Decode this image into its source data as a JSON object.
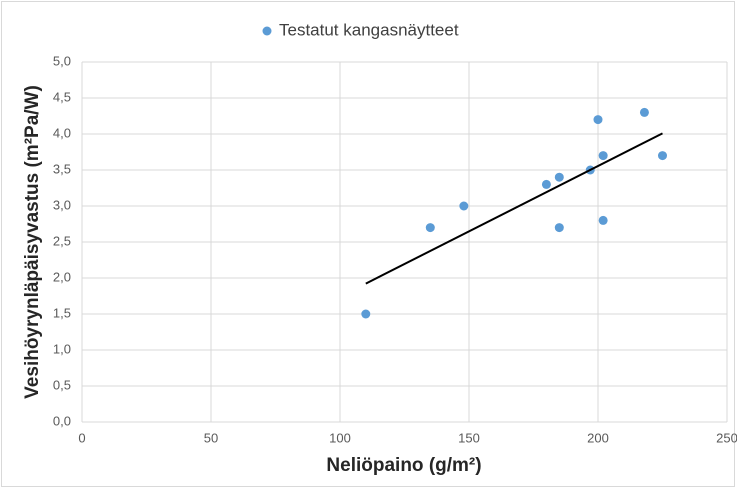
{
  "chart_data": {
    "type": "scatter",
    "legend_position": "top",
    "x_label": "Neliöpaino (g/m²)",
    "y_label": "Vesihöyrynläpäisyvastus (m²Pa/W)",
    "series": [
      {
        "name": "Testatut kangasnäytteet",
        "color": "#5b9bd5",
        "x": [
          110,
          135,
          148,
          180,
          185,
          185,
          197,
          200,
          202,
          202,
          218,
          225
        ],
        "values": [
          1.5,
          2.7,
          3.0,
          3.3,
          3.4,
          2.7,
          3.5,
          4.2,
          3.7,
          2.8,
          4.3,
          3.7
        ]
      }
    ],
    "trendline": "linear",
    "trendline_color": "#000000",
    "xlim": [
      0,
      250
    ],
    "xticks": [
      0,
      50,
      100,
      150,
      200,
      250
    ],
    "ylim": [
      0,
      5
    ],
    "yticks": [
      {
        "value": 0,
        "label": "0,0"
      },
      {
        "value": 0.5,
        "label": "0,5"
      },
      {
        "value": 1,
        "label": "1,0"
      },
      {
        "value": 1.5,
        "label": "1,5"
      },
      {
        "value": 2,
        "label": "2,0"
      },
      {
        "value": 2.5,
        "label": "2,5"
      },
      {
        "value": 3,
        "label": "3,0"
      },
      {
        "value": 3.5,
        "label": "3,5"
      },
      {
        "value": 4,
        "label": "4,0"
      },
      {
        "value": 4.5,
        "label": "4,5"
      },
      {
        "value": 5,
        "label": "5,0"
      }
    ],
    "grid": true
  }
}
